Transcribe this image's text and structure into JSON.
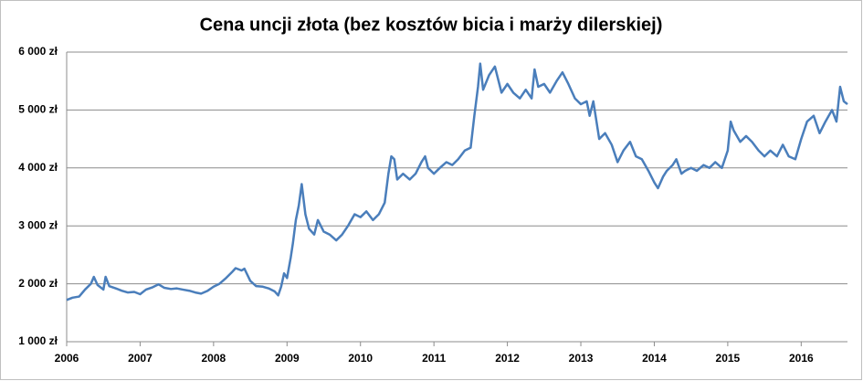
{
  "chart_data": {
    "type": "line",
    "title": "Cena uncji złota (bez kosztów bicia i marży dilerskiej)",
    "color": "#4a7ebb",
    "grid": true,
    "xlim": [
      2006,
      2016.63
    ],
    "xticks": [
      2006,
      2007,
      2008,
      2009,
      2010,
      2011,
      2012,
      2013,
      2014,
      2015,
      2016
    ],
    "ylim": [
      1000,
      6000
    ],
    "yticks": [
      {
        "value": 1000,
        "label": "1 000 zł"
      },
      {
        "value": 2000,
        "label": "2 000 zł"
      },
      {
        "value": 3000,
        "label": "3 000 zł"
      },
      {
        "value": 4000,
        "label": "4 000 zł"
      },
      {
        "value": 5000,
        "label": "5 000 zł"
      },
      {
        "value": 6000,
        "label": "6 000 zł"
      }
    ],
    "x": [
      2006.0,
      2006.08,
      2006.17,
      2006.25,
      2006.33,
      2006.37,
      2006.42,
      2006.5,
      2006.53,
      2006.58,
      2006.67,
      2006.75,
      2006.83,
      2006.92,
      2007.0,
      2007.08,
      2007.17,
      2007.25,
      2007.33,
      2007.42,
      2007.5,
      2007.58,
      2007.67,
      2007.75,
      2007.83,
      2007.92,
      2008.0,
      2008.08,
      2008.17,
      2008.25,
      2008.3,
      2008.38,
      2008.42,
      2008.5,
      2008.58,
      2008.67,
      2008.75,
      2008.83,
      2008.88,
      2008.92,
      2008.96,
      2009.0,
      2009.05,
      2009.08,
      2009.12,
      2009.16,
      2009.2,
      2009.25,
      2009.3,
      2009.37,
      2009.42,
      2009.5,
      2009.58,
      2009.67,
      2009.75,
      2009.83,
      2009.92,
      2010.0,
      2010.08,
      2010.17,
      2010.25,
      2010.33,
      2010.38,
      2010.42,
      2010.46,
      2010.5,
      2010.58,
      2010.67,
      2010.75,
      2010.83,
      2010.88,
      2010.92,
      2011.0,
      2011.08,
      2011.17,
      2011.25,
      2011.33,
      2011.42,
      2011.5,
      2011.55,
      2011.6,
      2011.63,
      2011.67,
      2011.75,
      2011.83,
      2011.88,
      2011.92,
      2012.0,
      2012.08,
      2012.17,
      2012.25,
      2012.33,
      2012.37,
      2012.42,
      2012.5,
      2012.58,
      2012.67,
      2012.75,
      2012.83,
      2012.92,
      2013.0,
      2013.08,
      2013.12,
      2013.17,
      2013.25,
      2013.33,
      2013.42,
      2013.5,
      2013.58,
      2013.67,
      2013.75,
      2013.83,
      2013.92,
      2014.0,
      2014.05,
      2014.12,
      2014.17,
      2014.25,
      2014.3,
      2014.37,
      2014.42,
      2014.5,
      2014.58,
      2014.67,
      2014.75,
      2014.83,
      2014.92,
      2015.0,
      2015.04,
      2015.08,
      2015.17,
      2015.25,
      2015.33,
      2015.42,
      2015.5,
      2015.58,
      2015.67,
      2015.75,
      2015.83,
      2015.92,
      2016.0,
      2016.08,
      2016.17,
      2016.25,
      2016.33,
      2016.42,
      2016.48,
      2016.53,
      2016.58,
      2016.63
    ],
    "values": [
      1720,
      1760,
      1780,
      1900,
      2000,
      2120,
      1980,
      1900,
      2120,
      1960,
      1920,
      1880,
      1850,
      1860,
      1820,
      1900,
      1940,
      1990,
      1930,
      1910,
      1920,
      1900,
      1880,
      1850,
      1830,
      1880,
      1950,
      2000,
      2100,
      2200,
      2270,
      2230,
      2260,
      2050,
      1960,
      1950,
      1920,
      1870,
      1800,
      1950,
      2180,
      2100,
      2450,
      2700,
      3100,
      3350,
      3720,
      3200,
      2950,
      2850,
      3100,
      2900,
      2850,
      2750,
      2850,
      3000,
      3200,
      3150,
      3250,
      3100,
      3200,
      3400,
      3900,
      4200,
      4150,
      3800,
      3900,
      3800,
      3900,
      4100,
      4200,
      4000,
      3900,
      4000,
      4100,
      4050,
      4150,
      4300,
      4350,
      4900,
      5400,
      5800,
      5350,
      5600,
      5750,
      5500,
      5300,
      5450,
      5300,
      5200,
      5350,
      5200,
      5700,
      5400,
      5450,
      5300,
      5500,
      5650,
      5450,
      5200,
      5100,
      5150,
      4900,
      5150,
      4500,
      4600,
      4400,
      4100,
      4300,
      4450,
      4200,
      4150,
      3950,
      3750,
      3650,
      3850,
      3950,
      4050,
      4150,
      3900,
      3950,
      4000,
      3950,
      4050,
      4000,
      4100,
      4000,
      4300,
      4800,
      4650,
      4450,
      4550,
      4450,
      4300,
      4200,
      4300,
      4200,
      4400,
      4200,
      4150,
      4500,
      4800,
      4900,
      4600,
      4800,
      5000,
      4800,
      5400,
      5150,
      5100
    ]
  }
}
